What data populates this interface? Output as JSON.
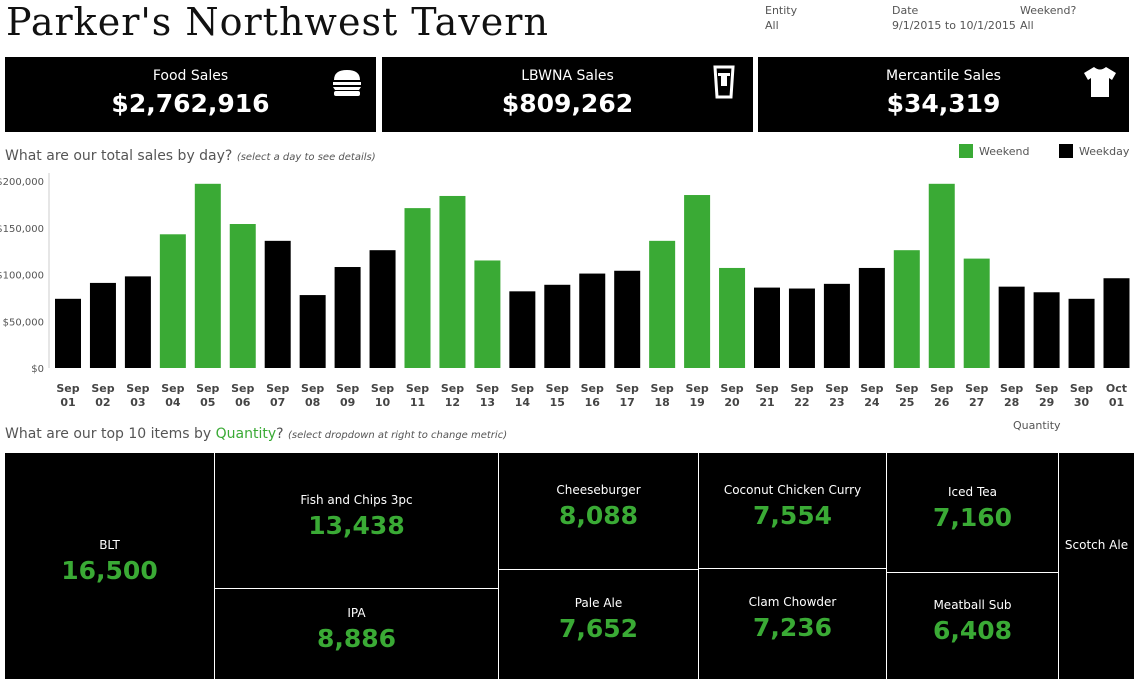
{
  "title": "Parker's Northwest Tavern",
  "filters": [
    {
      "label": "Entity",
      "value": "All"
    },
    {
      "label": "Date",
      "value": "9/1/2015 to 10/1/2015"
    },
    {
      "label": "Weekend?",
      "value": "All"
    }
  ],
  "kpis": [
    {
      "label": "Food Sales",
      "value": "$2,762,916",
      "icon": "burger-icon"
    },
    {
      "label": "LBWNA Sales",
      "value": "$809,262",
      "icon": "beer-glass-icon"
    },
    {
      "label": "Mercantile Sales",
      "value": "$34,319",
      "icon": "tshirt-icon"
    }
  ],
  "daily": {
    "question": "What are our total sales by day?",
    "hint": "(select a day to see details)"
  },
  "legend": {
    "weekend": "Weekend",
    "weekday": "Weekday"
  },
  "colors": {
    "weekend": "#3aaa35",
    "weekday": "#000000",
    "accent": "#3aaa35"
  },
  "chart_data": {
    "type": "bar",
    "categories": [
      "Sep 01",
      "Sep 02",
      "Sep 03",
      "Sep 04",
      "Sep 05",
      "Sep 06",
      "Sep 07",
      "Sep 08",
      "Sep 09",
      "Sep 10",
      "Sep 11",
      "Sep 12",
      "Sep 13",
      "Sep 14",
      "Sep 15",
      "Sep 16",
      "Sep 17",
      "Sep 18",
      "Sep 19",
      "Sep 20",
      "Sep 21",
      "Sep 22",
      "Sep 23",
      "Sep 24",
      "Sep 25",
      "Sep 26",
      "Sep 27",
      "Sep 28",
      "Sep 29",
      "Sep 30",
      "Oct 01"
    ],
    "values": [
      74000,
      91000,
      98000,
      143000,
      197000,
      154000,
      136000,
      78000,
      108000,
      126000,
      171000,
      184000,
      115000,
      82000,
      89000,
      101000,
      104000,
      136000,
      185000,
      107000,
      86000,
      85000,
      90000,
      107000,
      126000,
      197000,
      117000,
      87000,
      81000,
      74000,
      96000
    ],
    "weekend": [
      false,
      false,
      false,
      true,
      true,
      true,
      false,
      false,
      false,
      false,
      true,
      true,
      true,
      false,
      false,
      false,
      false,
      true,
      true,
      true,
      false,
      false,
      false,
      false,
      true,
      true,
      true,
      false,
      false,
      false,
      false
    ],
    "ylim": [
      0,
      200000
    ],
    "yticks": [
      0,
      50000,
      100000,
      150000,
      200000
    ],
    "ytick_labels": [
      "$0",
      "$50,000",
      "$100,000",
      "$150,000",
      "$200,000"
    ],
    "legend_position": "top-right"
  },
  "top": {
    "question_prefix": "What are our top 10 items by ",
    "metric": "Quantity",
    "question_suffix": "?",
    "hint": "(select dropdown at right to change metric)",
    "selector_value": "Quantity"
  },
  "treemap": [
    {
      "name": "BLT",
      "value": "16,500"
    },
    {
      "name": "Fish and Chips 3pc",
      "value": "13,438"
    },
    {
      "name": "IPA",
      "value": "8,886"
    },
    {
      "name": "Cheeseburger",
      "value": "8,088"
    },
    {
      "name": "Pale Ale",
      "value": "7,652"
    },
    {
      "name": "Coconut Chicken Curry",
      "value": "7,554"
    },
    {
      "name": "Clam Chowder",
      "value": "7,236"
    },
    {
      "name": "Iced Tea",
      "value": "7,160"
    },
    {
      "name": "Meatball Sub",
      "value": "6,408"
    },
    {
      "name": "Scotch Ale",
      "value": ""
    }
  ]
}
